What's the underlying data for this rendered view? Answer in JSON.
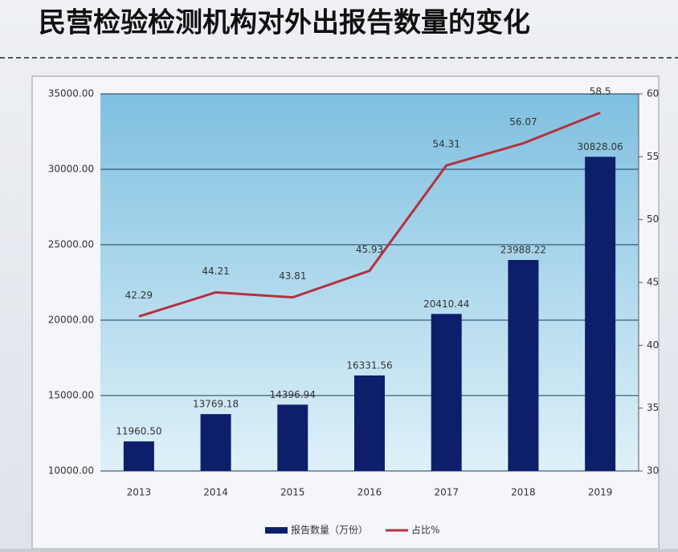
{
  "chart_data": {
    "type": "bar-line",
    "title": "民营检验检测机构对外出报告数量的变化",
    "categories": [
      "2013",
      "2014",
      "2015",
      "2016",
      "2017",
      "2018",
      "2019"
    ],
    "series": [
      {
        "name": "报告数量（万份）",
        "type": "bar",
        "color": "#0d1f6b",
        "values": [
          11960.5,
          13769.18,
          14396.94,
          16331.56,
          20410.44,
          23988.22,
          30828.06
        ],
        "value_labels": [
          "11960.50",
          "13769.18",
          "14396.94",
          "16331.56",
          "20410.44",
          "23988.22",
          "30828.06"
        ]
      },
      {
        "name": "占比%",
        "type": "line",
        "color": "#b3323f",
        "axis": "y2",
        "values": [
          42.29,
          44.21,
          43.81,
          45.93,
          54.31,
          56.07,
          58.5
        ]
      }
    ],
    "ylim": [
      10000,
      35000
    ],
    "yticks": [
      {
        "value": 10000,
        "label": "10000.00"
      },
      {
        "value": 15000,
        "label": "15000.00"
      },
      {
        "value": 20000,
        "label": "20000.00"
      },
      {
        "value": 25000,
        "label": "25000.00"
      },
      {
        "value": 30000,
        "label": "30000.00"
      },
      {
        "value": 35000,
        "label": "35000.00"
      }
    ],
    "y2lim": [
      30,
      60
    ],
    "y2ticks": [
      30,
      35,
      40,
      45,
      50,
      55,
      60
    ],
    "grid": true,
    "legend": "bottom"
  }
}
